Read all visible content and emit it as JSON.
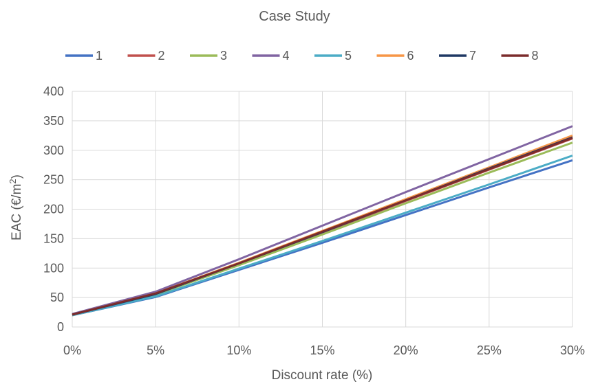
{
  "chart_data": {
    "type": "line",
    "title": "Case Study",
    "xlabel": "Discount rate (%)",
    "ylabel_prefix": "EAC (€/m",
    "ylabel_sup": "2",
    "ylabel_suffix": ")",
    "xlim": [
      0,
      30
    ],
    "ylim": [
      0,
      400
    ],
    "grid": true,
    "legend_position": "top",
    "x_ticks": [
      0,
      5,
      10,
      15,
      20,
      25,
      30
    ],
    "x_tick_labels": [
      "0%",
      "5%",
      "10%",
      "15%",
      "20%",
      "25%",
      "30%"
    ],
    "y_ticks": [
      0,
      50,
      100,
      150,
      200,
      250,
      300,
      350,
      400
    ],
    "y_tick_labels": [
      "0",
      "50",
      "100",
      "150",
      "200",
      "250",
      "300",
      "350",
      "400"
    ],
    "x": [
      0,
      5,
      10,
      15,
      20,
      25,
      30
    ],
    "series": [
      {
        "name": "1",
        "color": "#4472C4",
        "values": [
          20,
          51,
          97,
          143,
          190,
          237,
          283
        ]
      },
      {
        "name": "2",
        "color": "#C0504D",
        "values": [
          21,
          56,
          107,
          160,
          214,
          267,
          320
        ]
      },
      {
        "name": "3",
        "color": "#9BBB59",
        "values": [
          20,
          55,
          105,
          157,
          210,
          262,
          313
        ]
      },
      {
        "name": "4",
        "color": "#8064A2",
        "values": [
          22,
          60,
          115,
          172,
          229,
          285,
          341
        ]
      },
      {
        "name": "5",
        "color": "#4BACC6",
        "values": [
          20,
          52,
          99,
          146,
          194,
          242,
          291
        ]
      },
      {
        "name": "6",
        "color": "#F79646",
        "values": [
          21,
          57,
          109,
          163,
          217,
          271,
          325
        ]
      },
      {
        "name": "7",
        "color": "#1F3864",
        "values": [
          21,
          56,
          108,
          161,
          215,
          269,
          322
        ]
      },
      {
        "name": "8",
        "color": "#7B2C2C",
        "values": [
          21,
          57,
          108,
          162,
          215,
          268,
          321
        ]
      }
    ]
  }
}
